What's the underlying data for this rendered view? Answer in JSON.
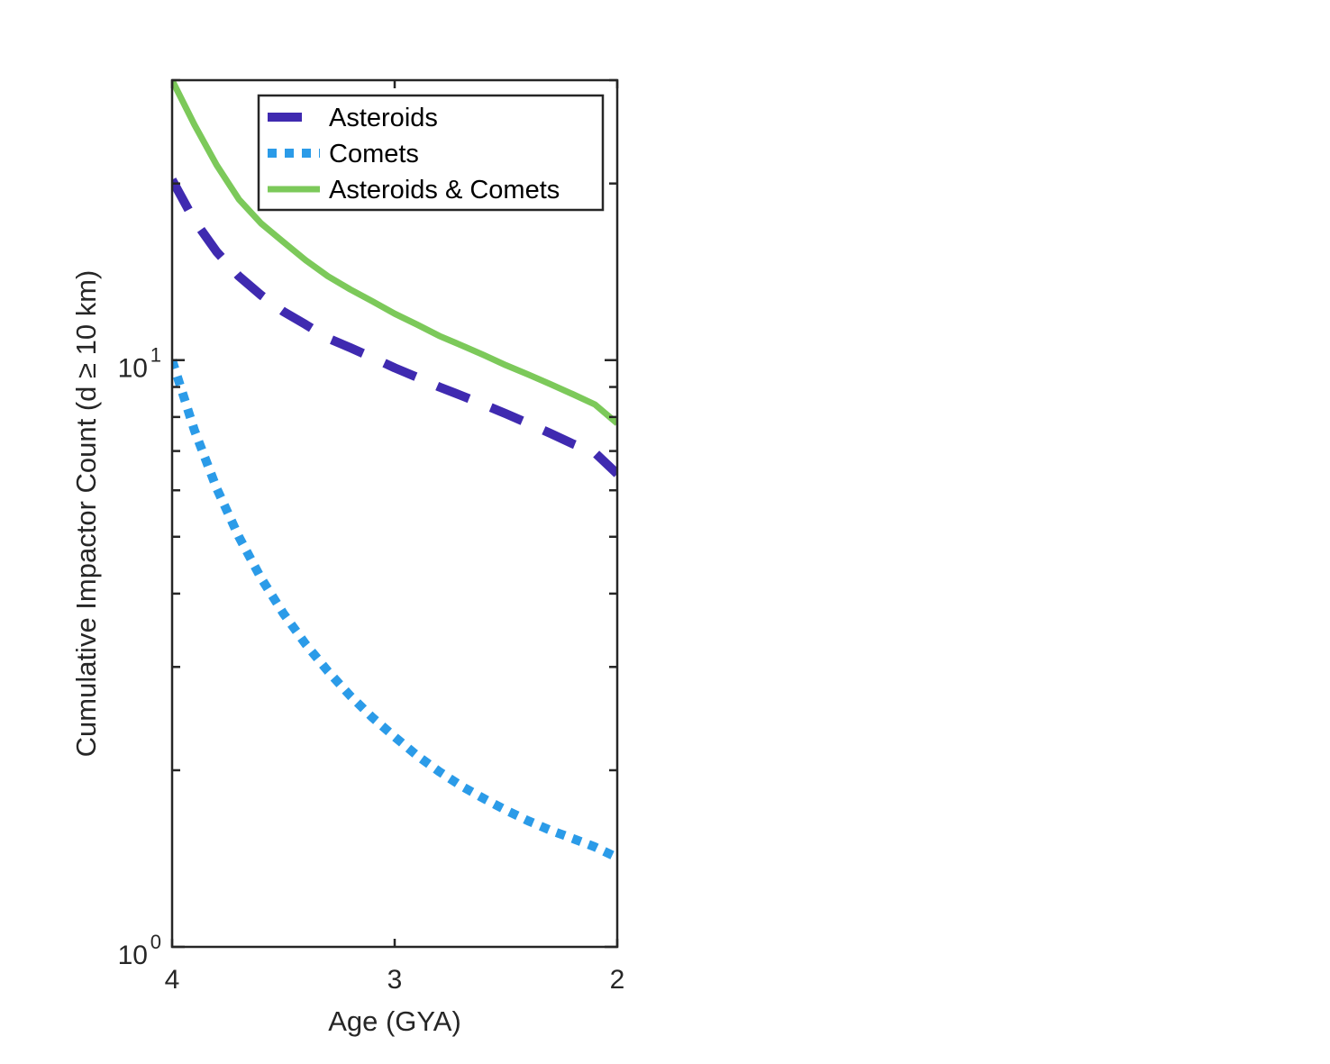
{
  "chart_data": {
    "type": "line",
    "xlabel": "Age (GYA)",
    "ylabel": "Cumulative Impactor Count (d ≥ 10 km)",
    "xlim": [
      4,
      2
    ],
    "x_reversed": true,
    "ylim": [
      1,
      30
    ],
    "y_scale": "log",
    "grid": false,
    "legend_position": "top-right",
    "x_ticks": [
      4,
      3,
      2
    ],
    "x_tick_labels": [
      "4",
      "3",
      "2"
    ],
    "y_ticks": [
      1,
      10
    ],
    "y_tick_labels": [
      {
        "base": "10",
        "exp": "0"
      },
      {
        "base": "10",
        "exp": "1"
      }
    ],
    "series": [
      {
        "name": "Asteroids",
        "style": "dashed",
        "color": "#3f2ab0",
        "x": [
          4.0,
          3.9,
          3.8,
          3.7,
          3.6,
          3.5,
          3.4,
          3.3,
          3.2,
          3.1,
          3.0,
          2.9,
          2.8,
          2.7,
          2.6,
          2.5,
          2.4,
          2.3,
          2.2,
          2.1,
          2.0
        ],
        "values": [
          20.3,
          17.3,
          15.3,
          13.9,
          12.9,
          12.1,
          11.5,
          10.9,
          10.5,
          10.1,
          9.7,
          9.35,
          9.0,
          8.7,
          8.4,
          8.1,
          7.8,
          7.5,
          7.2,
          6.95,
          6.4
        ]
      },
      {
        "name": "Comets",
        "style": "dotted",
        "color": "#2b9be8",
        "x": [
          4.0,
          3.9,
          3.8,
          3.7,
          3.6,
          3.5,
          3.4,
          3.3,
          3.2,
          3.1,
          3.0,
          2.9,
          2.8,
          2.7,
          2.6,
          2.5,
          2.4,
          2.3,
          2.2,
          2.1,
          2.0
        ],
        "values": [
          10.0,
          7.6,
          6.05,
          5.0,
          4.25,
          3.7,
          3.28,
          2.95,
          2.68,
          2.46,
          2.28,
          2.12,
          1.99,
          1.88,
          1.79,
          1.71,
          1.64,
          1.58,
          1.53,
          1.48,
          1.42
        ]
      },
      {
        "name": "Asteroids & Comets",
        "style": "solid",
        "color": "#7cc95a",
        "x": [
          4.0,
          3.9,
          3.8,
          3.7,
          3.6,
          3.5,
          3.4,
          3.3,
          3.2,
          3.1,
          3.0,
          2.9,
          2.8,
          2.7,
          2.6,
          2.5,
          2.4,
          2.3,
          2.2,
          2.1,
          2.0
        ],
        "values": [
          30.0,
          25.2,
          21.5,
          18.8,
          17.1,
          15.9,
          14.8,
          13.9,
          13.2,
          12.6,
          12.0,
          11.5,
          11.0,
          10.6,
          10.2,
          9.8,
          9.45,
          9.1,
          8.75,
          8.4,
          7.8
        ]
      }
    ]
  }
}
